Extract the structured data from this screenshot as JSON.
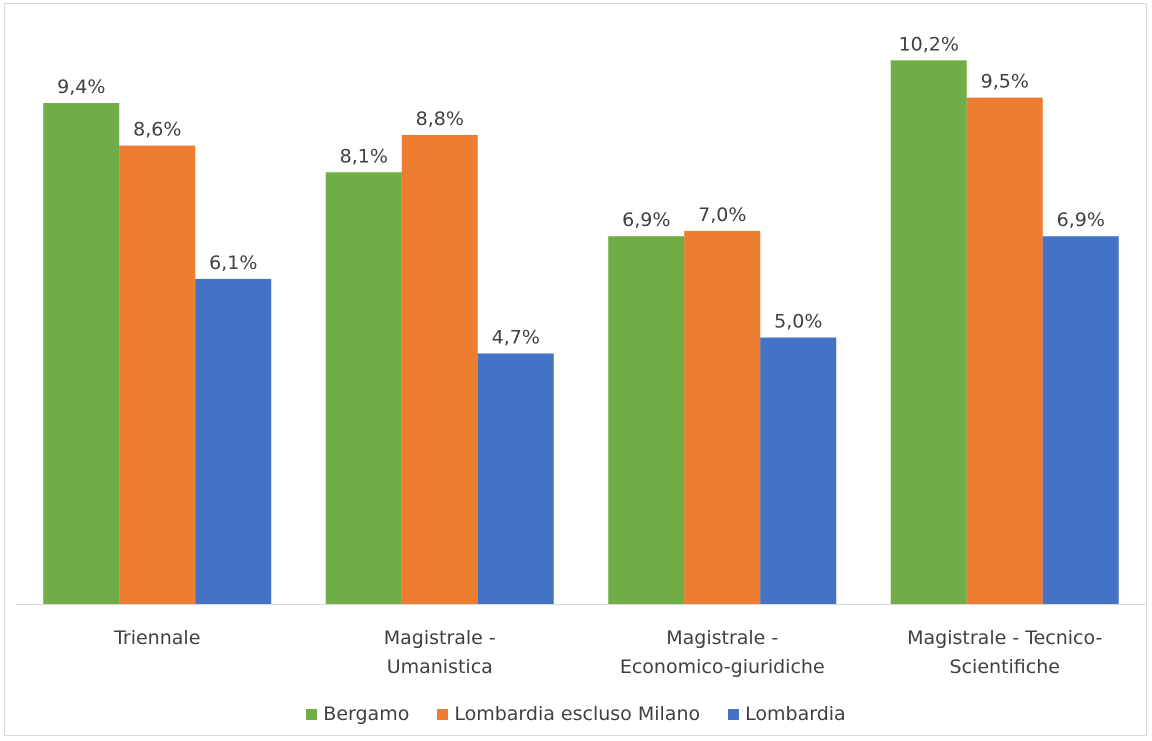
{
  "chart_data": {
    "type": "bar",
    "categories": [
      [
        "Triennale"
      ],
      [
        "Magistrale -",
        "Umanistica"
      ],
      [
        "Magistrale -",
        "Economico-giuridiche"
      ],
      [
        "Magistrale - Tecnico-",
        "Scientifiche"
      ]
    ],
    "series": [
      {
        "name": "Bergamo",
        "color": "#70ad47",
        "values": [
          9.4,
          8.1,
          6.9,
          10.2
        ],
        "labels": [
          "9,4%",
          "8,1%",
          "6,9%",
          "10,2%"
        ]
      },
      {
        "name": "Lombardia escluso Milano",
        "color": "#ed7d31",
        "values": [
          8.6,
          8.8,
          7.0,
          9.5
        ],
        "labels": [
          "8,6%",
          "8,8%",
          "7,0%",
          "9,5%"
        ]
      },
      {
        "name": "Lombardia",
        "color": "#4472c4",
        "values": [
          6.1,
          4.7,
          5.0,
          6.9
        ],
        "labels": [
          "6,1%",
          "4,7%",
          "5,0%",
          "6,9%"
        ]
      }
    ],
    "ylim": [
      0,
      11
    ],
    "grid": false,
    "legend_position": "bottom"
  }
}
